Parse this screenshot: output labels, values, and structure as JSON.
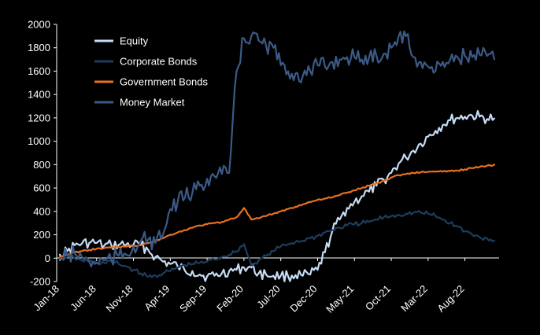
{
  "chart_data": {
    "type": "line",
    "title": "",
    "xlabel": "",
    "ylabel": "",
    "ylim": [
      -200,
      2000
    ],
    "yticks": [
      -200,
      0,
      200,
      400,
      600,
      800,
      1000,
      1200,
      1400,
      1600,
      1800,
      2000
    ],
    "xlim": [
      "2018-01",
      "2022-12"
    ],
    "xtick_labels": [
      "Jan-18",
      "Jun-18",
      "Nov-18",
      "Apr-19",
      "Sep-19",
      "Feb-20",
      "Jul-20",
      "Dec-20",
      "May-21",
      "Oct-21",
      "Mar-22",
      "Aug-22"
    ],
    "xtick_dates": [
      "2018-01",
      "2018-06",
      "2018-11",
      "2019-04",
      "2019-09",
      "2020-02",
      "2020-07",
      "2020-12",
      "2021-05",
      "2021-10",
      "2022-03",
      "2022-08"
    ],
    "grid": false,
    "legend": "top-left",
    "series": [
      {
        "name": "Equity",
        "color": "#c6dcf4",
        "x": [
          "2018-01",
          "2018-02",
          "2018-03",
          "2018-04",
          "2018-05",
          "2018-06",
          "2018-07",
          "2018-08",
          "2018-09",
          "2018-10",
          "2018-11",
          "2018-12",
          "2019-01",
          "2019-02",
          "2019-03",
          "2019-04",
          "2019-05",
          "2019-06",
          "2019-07",
          "2019-08",
          "2019-09",
          "2019-10",
          "2019-11",
          "2019-12",
          "2020-01",
          "2020-02",
          "2020-03",
          "2020-04",
          "2020-05",
          "2020-06",
          "2020-07",
          "2020-08",
          "2020-09",
          "2020-10",
          "2020-11",
          "2020-12",
          "2021-01",
          "2021-02",
          "2021-03",
          "2021-04",
          "2021-05",
          "2021-06",
          "2021-07",
          "2021-08",
          "2021-09",
          "2021-10",
          "2021-11",
          "2021-12",
          "2022-01",
          "2022-02",
          "2022-03",
          "2022-04",
          "2022-05",
          "2022-06",
          "2022-07",
          "2022-08",
          "2022-09",
          "2022-10",
          "2022-11",
          "2022-12"
        ],
        "values": [
          30,
          60,
          110,
          125,
          130,
          130,
          105,
          110,
          115,
          115,
          115,
          110,
          70,
          10,
          -30,
          -50,
          -70,
          -110,
          -110,
          -140,
          -155,
          -150,
          -130,
          -110,
          -100,
          -80,
          -80,
          -130,
          -140,
          -150,
          -150,
          -155,
          -145,
          -150,
          -140,
          -100,
          50,
          230,
          330,
          430,
          480,
          530,
          570,
          620,
          670,
          730,
          810,
          860,
          920,
          980,
          1040,
          1090,
          1140,
          1180,
          1200,
          1210,
          1220,
          1210,
          1190,
          1195
        ]
      },
      {
        "name": "Corporate Bonds",
        "color": "#1d3d5c",
        "x": [
          "2018-01",
          "2018-02",
          "2018-03",
          "2018-04",
          "2018-05",
          "2018-06",
          "2018-07",
          "2018-08",
          "2018-09",
          "2018-10",
          "2018-11",
          "2018-12",
          "2019-01",
          "2019-02",
          "2019-03",
          "2019-04",
          "2019-05",
          "2019-06",
          "2019-07",
          "2019-08",
          "2019-09",
          "2019-10",
          "2019-11",
          "2019-12",
          "2020-01",
          "2020-02",
          "2020-03",
          "2020-04",
          "2020-05",
          "2020-06",
          "2020-07",
          "2020-08",
          "2020-09",
          "2020-10",
          "2020-11",
          "2020-12",
          "2021-01",
          "2021-02",
          "2021-03",
          "2021-04",
          "2021-05",
          "2021-06",
          "2021-07",
          "2021-08",
          "2021-09",
          "2021-10",
          "2021-11",
          "2021-12",
          "2022-01",
          "2022-02",
          "2022-03",
          "2022-04",
          "2022-05",
          "2022-06",
          "2022-07",
          "2022-08",
          "2022-09",
          "2022-10",
          "2022-11",
          "2022-12"
        ],
        "values": [
          0,
          10,
          0,
          -20,
          -30,
          -40,
          -40,
          -30,
          -50,
          -70,
          -100,
          -130,
          -160,
          -150,
          -130,
          -110,
          -80,
          -60,
          -50,
          -40,
          -30,
          -10,
          10,
          30,
          60,
          120,
          -60,
          -20,
          20,
          60,
          100,
          120,
          140,
          150,
          170,
          190,
          220,
          240,
          260,
          280,
          290,
          300,
          310,
          330,
          350,
          360,
          370,
          380,
          390,
          390,
          380,
          360,
          330,
          300,
          270,
          230,
          200,
          180,
          170,
          150
        ]
      },
      {
        "name": "Government Bonds",
        "color": "#e87020",
        "x": [
          "2018-01",
          "2018-02",
          "2018-03",
          "2018-04",
          "2018-05",
          "2018-06",
          "2018-07",
          "2018-08",
          "2018-09",
          "2018-10",
          "2018-11",
          "2018-12",
          "2019-01",
          "2019-02",
          "2019-03",
          "2019-04",
          "2019-05",
          "2019-06",
          "2019-07",
          "2019-08",
          "2019-09",
          "2019-10",
          "2019-11",
          "2019-12",
          "2020-01",
          "2020-02",
          "2020-03",
          "2020-04",
          "2020-05",
          "2020-06",
          "2020-07",
          "2020-08",
          "2020-09",
          "2020-10",
          "2020-11",
          "2020-12",
          "2021-01",
          "2021-02",
          "2021-03",
          "2021-04",
          "2021-05",
          "2021-06",
          "2021-07",
          "2021-08",
          "2021-09",
          "2021-10",
          "2021-11",
          "2021-12",
          "2022-01",
          "2022-02",
          "2022-03",
          "2022-04",
          "2022-05",
          "2022-06",
          "2022-07",
          "2022-08",
          "2022-09",
          "2022-10",
          "2022-11",
          "2022-12"
        ],
        "values": [
          10,
          30,
          50,
          60,
          70,
          80,
          85,
          90,
          95,
          100,
          105,
          110,
          130,
          150,
          170,
          200,
          220,
          240,
          260,
          280,
          290,
          300,
          310,
          330,
          350,
          430,
          330,
          340,
          360,
          380,
          400,
          420,
          440,
          460,
          480,
          500,
          510,
          520,
          540,
          560,
          580,
          600,
          620,
          640,
          660,
          690,
          710,
          720,
          730,
          735,
          740,
          740,
          740,
          745,
          750,
          760,
          770,
          780,
          790,
          800
        ]
      },
      {
        "name": "Money Market",
        "color": "#3b5a86",
        "x": [
          "2018-01",
          "2018-02",
          "2018-03",
          "2018-04",
          "2018-05",
          "2018-06",
          "2018-07",
          "2018-08",
          "2018-09",
          "2018-10",
          "2018-11",
          "2018-12",
          "2019-01",
          "2019-02",
          "2019-03",
          "2019-04",
          "2019-05",
          "2019-06",
          "2019-07",
          "2019-08",
          "2019-09",
          "2019-10",
          "2019-11",
          "2019-12",
          "2020-01",
          "2020-02",
          "2020-03",
          "2020-04",
          "2020-05",
          "2020-06",
          "2020-07",
          "2020-08",
          "2020-09",
          "2020-10",
          "2020-11",
          "2020-12",
          "2021-01",
          "2021-02",
          "2021-03",
          "2021-04",
          "2021-05",
          "2021-06",
          "2021-07",
          "2021-08",
          "2021-09",
          "2021-10",
          "2021-11",
          "2021-12",
          "2022-01",
          "2022-02",
          "2022-03",
          "2022-04",
          "2022-05",
          "2022-06",
          "2022-07",
          "2022-08",
          "2022-09",
          "2022-10",
          "2022-11",
          "2022-12"
        ],
        "values": [
          0,
          20,
          40,
          10,
          -30,
          -40,
          -20,
          -10,
          20,
          30,
          100,
          150,
          160,
          130,
          200,
          420,
          480,
          520,
          560,
          620,
          680,
          700,
          720,
          730,
          1600,
          1880,
          1900,
          1860,
          1820,
          1800,
          1650,
          1600,
          1580,
          1560,
          1600,
          1650,
          1640,
          1680,
          1700,
          1720,
          1720,
          1700,
          1720,
          1730,
          1750,
          1800,
          1900,
          1900,
          1720,
          1680,
          1640,
          1600,
          1680,
          1700,
          1720,
          1730,
          1720,
          1740,
          1730,
          1700
        ]
      }
    ]
  }
}
